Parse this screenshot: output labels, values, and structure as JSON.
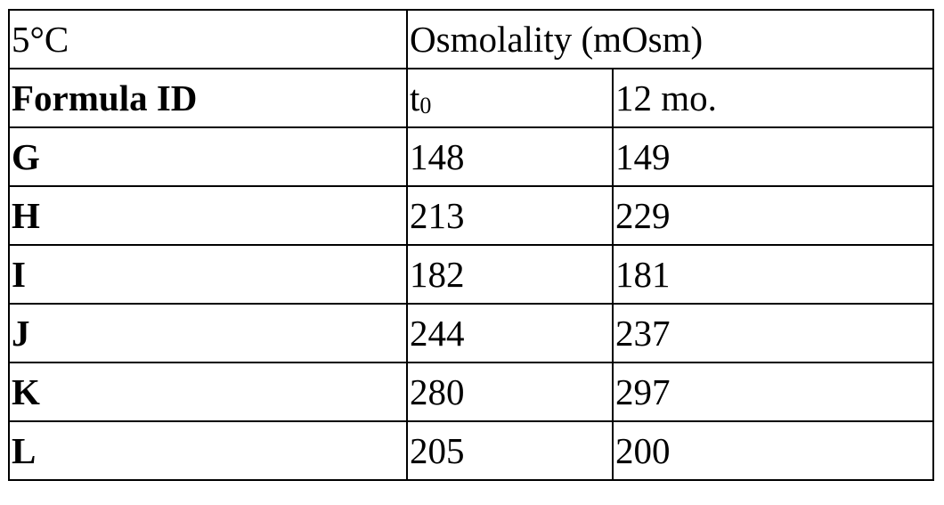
{
  "table": {
    "header": {
      "temperature": "5°C",
      "measure": "Osmolality (mOsm)",
      "formula_label": "Formula ID",
      "t0_base": "t",
      "t0_sub": "0",
      "month12": "12 mo."
    },
    "rows": [
      {
        "id": "G",
        "t0": "148",
        "m12": "149"
      },
      {
        "id": "H",
        "t0": "213",
        "m12": "229"
      },
      {
        "id": "I",
        "t0": "182",
        "m12": "181"
      },
      {
        "id": "J",
        "t0": "244",
        "m12": "237"
      },
      {
        "id": "K",
        "t0": "280",
        "m12": "297"
      },
      {
        "id": "L",
        "t0": "205",
        "m12": "200"
      }
    ]
  }
}
